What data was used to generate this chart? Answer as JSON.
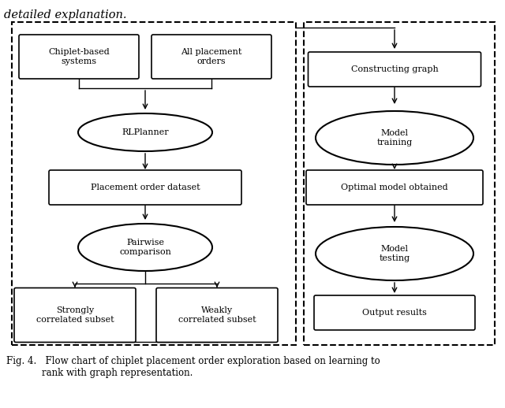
{
  "fig_width": 6.4,
  "fig_height": 5.18,
  "dpi": 100,
  "bg_color": "#ffffff",
  "font_size": 8.0,
  "caption_font_size": 8.5,
  "top_text": "detailed explanation.",
  "caption_line1": "Fig. 4.   Flow chart of chiplet placement order exploration based on learning to",
  "caption_line2": "            rank with graph representation."
}
